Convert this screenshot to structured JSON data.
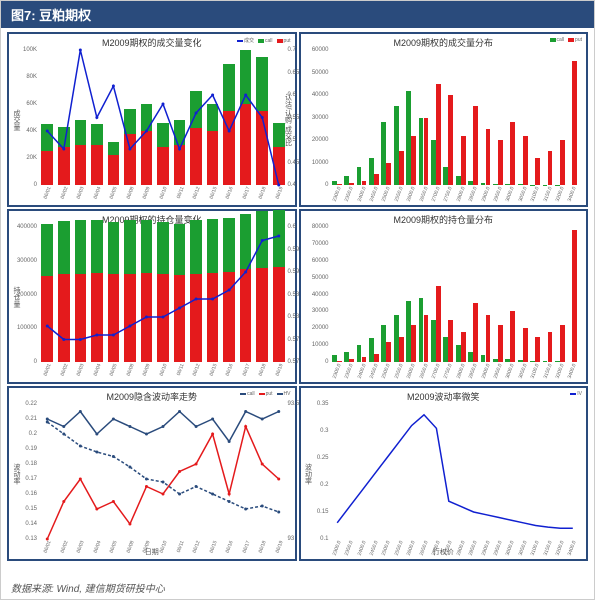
{
  "header_title": "图7: 豆粕期权",
  "footer": "数据来源: Wind, 建信期货研投中心",
  "colors": {
    "border": "#2a4b7c",
    "red": "#e41a1c",
    "green": "#1b9e31",
    "blue": "#1020d0",
    "navy_dotted": "#2a4b7c",
    "black": "#000000"
  },
  "panel1": {
    "title": "M2009期权的成交量变化",
    "type": "stacked-bar+line",
    "y_left": {
      "min": 0,
      "max": 100000,
      "ticks": [
        0,
        "20K",
        "40K",
        "60K",
        "80K",
        "100K"
      ],
      "label": "成交量"
    },
    "y_right": {
      "min": 0.4,
      "max": 0.7,
      "ticks": [
        0.4,
        0.45,
        0.5,
        0.55,
        0.6,
        0.65,
        0.7
      ],
      "label": "认沽/认购 成交比"
    },
    "x": [
      "06/01",
      "06/02",
      "06/03",
      "06/04",
      "06/05",
      "06/08",
      "06/09",
      "06/10",
      "06/11",
      "06/12",
      "06/15",
      "06/16",
      "06/17",
      "06/18",
      "06/19"
    ],
    "red_bars": [
      25000,
      28000,
      30000,
      30000,
      22000,
      38000,
      40000,
      28000,
      30000,
      42000,
      40000,
      55000,
      60000,
      55000,
      28000
    ],
    "green_bars": [
      20000,
      15000,
      18000,
      15000,
      10000,
      18000,
      20000,
      18000,
      18000,
      28000,
      20000,
      35000,
      40000,
      40000,
      18000
    ],
    "line": [
      0.52,
      0.48,
      0.7,
      0.55,
      0.62,
      0.48,
      0.52,
      0.58,
      0.48,
      0.56,
      0.6,
      0.52,
      0.6,
      0.55,
      0.4
    ],
    "legend": [
      "成交",
      "call",
      "put"
    ]
  },
  "panel2": {
    "title": "M2009期权的成交量分布",
    "type": "grouped-bar",
    "y_left": {
      "min": 0,
      "max": 60000,
      "ticks": [
        0,
        10000,
        20000,
        30000,
        40000,
        50000,
        60000
      ]
    },
    "x": [
      "2300.0",
      "2350.0",
      "2400.0",
      "2450.0",
      "2500.0",
      "2550.0",
      "2600.0",
      "2650.0",
      "2700.0",
      "2750.0",
      "2800.0",
      "2850.0",
      "2900.0",
      "2950.0",
      "3000.0",
      "3050.0",
      "3100.0",
      "3150.0",
      "3200.0",
      "3400.0"
    ],
    "green_bars": [
      2000,
      4000,
      8000,
      12000,
      28000,
      35000,
      42000,
      30000,
      20000,
      8000,
      4000,
      2000,
      1000,
      500,
      400,
      300,
      200,
      100,
      100,
      0
    ],
    "red_bars": [
      500,
      1000,
      2000,
      5000,
      10000,
      15000,
      22000,
      30000,
      45000,
      40000,
      22000,
      35000,
      25000,
      20000,
      28000,
      22000,
      12000,
      15000,
      20000,
      55000
    ],
    "legend": [
      "call",
      "put"
    ]
  },
  "panel3": {
    "title": "M2009期权的持仓量变化",
    "type": "stacked-bar+line",
    "y_left": {
      "min": 0,
      "max": 400000,
      "ticks": [
        0,
        100000,
        200000,
        300000,
        400000
      ],
      "label": "持仓量"
    },
    "y_right": {
      "min": 0.57,
      "max": 0.6,
      "ticks": [
        0.57,
        0.575,
        0.58,
        0.585,
        0.59,
        0.595,
        0.6
      ]
    },
    "x": [
      "06/01",
      "06/02",
      "06/03",
      "06/04",
      "06/05",
      "06/08",
      "06/09",
      "06/10",
      "06/11",
      "06/12",
      "06/15",
      "06/16",
      "06/17",
      "06/18",
      "06/19"
    ],
    "red_bars": [
      255000,
      260000,
      262000,
      263000,
      260000,
      262000,
      263000,
      260000,
      258000,
      262000,
      265000,
      268000,
      275000,
      280000,
      282000
    ],
    "green_bars": [
      155000,
      158000,
      158000,
      158000,
      155000,
      158000,
      158000,
      155000,
      152000,
      158000,
      158000,
      160000,
      165000,
      168000,
      168000
    ],
    "line": [
      0.578,
      0.575,
      0.575,
      0.576,
      0.576,
      0.578,
      0.58,
      0.58,
      0.582,
      0.584,
      0.584,
      0.586,
      0.59,
      0.597,
      0.598
    ]
  },
  "panel4": {
    "title": "M2009期权的持仓量分布",
    "type": "grouped-bar",
    "y_left": {
      "min": 0,
      "max": 80000,
      "ticks": [
        0,
        10000,
        20000,
        30000,
        40000,
        50000,
        60000,
        70000,
        80000
      ]
    },
    "x": [
      "2300.0",
      "2350.0",
      "2400.0",
      "2450.0",
      "2500.0",
      "2550.0",
      "2600.0",
      "2650.0",
      "2700.0",
      "2750.0",
      "2800.0",
      "2850.0",
      "2900.0",
      "2950.0",
      "3000.0",
      "3050.0",
      "3100.0",
      "3150.0",
      "3200.0",
      "3400.0"
    ],
    "green_bars": [
      4000,
      6000,
      10000,
      14000,
      22000,
      28000,
      36000,
      38000,
      25000,
      15000,
      10000,
      6000,
      4000,
      2000,
      1500,
      1000,
      800,
      500,
      400,
      0
    ],
    "red_bars": [
      800,
      1500,
      3000,
      5000,
      12000,
      15000,
      22000,
      28000,
      45000,
      25000,
      18000,
      35000,
      28000,
      22000,
      30000,
      20000,
      15000,
      18000,
      22000,
      78000
    ]
  },
  "panel5": {
    "title": "M2009隐含波动率走势",
    "type": "multi-line",
    "y_left": {
      "min": 0.13,
      "max": 0.22,
      "ticks": [
        0.13,
        0.14,
        0.15,
        0.16,
        0.17,
        0.18,
        0.19,
        0.2,
        0.21,
        0.22
      ],
      "label": "波动率"
    },
    "y_right": {
      "min": 93.0,
      "max": 93.5,
      "ticks": [
        93.0,
        93.5
      ]
    },
    "x": [
      "06/01",
      "06/02",
      "06/03",
      "06/04",
      "06/05",
      "06/08",
      "06/09",
      "06/10",
      "06/11",
      "06/12",
      "06/15",
      "06/16",
      "06/17",
      "06/18",
      "06/19"
    ],
    "xlabel": "日期",
    "navy_line": [
      0.21,
      0.205,
      0.215,
      0.2,
      0.21,
      0.205,
      0.2,
      0.205,
      0.215,
      0.205,
      0.21,
      0.195,
      0.215,
      0.21,
      0.215
    ],
    "red_line": [
      0.13,
      0.155,
      0.17,
      0.15,
      0.155,
      0.14,
      0.165,
      0.16,
      0.175,
      0.18,
      0.2,
      0.16,
      0.205,
      0.18,
      0.17
    ],
    "dotted_line": [
      0.208,
      0.2,
      0.192,
      0.188,
      0.185,
      0.178,
      0.17,
      0.168,
      0.16,
      0.165,
      0.16,
      0.155,
      0.15,
      0.152,
      0.148
    ],
    "legend": [
      "call",
      "put",
      "HV"
    ]
  },
  "panel6": {
    "title": "M2009波动率微笑",
    "type": "line",
    "y_left": {
      "min": 0.1,
      "max": 0.35,
      "ticks": [
        0.1,
        0.15,
        0.2,
        0.25,
        0.3,
        0.35
      ],
      "label": "波动率"
    },
    "x": [
      "2300.0",
      "2350.0",
      "2400.0",
      "2450.0",
      "2500.0",
      "2550.0",
      "2600.0",
      "2650.0",
      "2700.0",
      "2750.0",
      "2800.0",
      "2850.0",
      "2900.0",
      "2950.0",
      "3000.0",
      "3050.0",
      "3100.0",
      "3150.0",
      "3200.0",
      "3400.0"
    ],
    "xlabel": "行权价",
    "blue_line": [
      0.13,
      0.16,
      0.19,
      0.22,
      0.25,
      0.28,
      0.31,
      0.33,
      0.305,
      0.17,
      0.16,
      0.15,
      0.145,
      0.14,
      0.135,
      0.13,
      0.125,
      0.122,
      0.12,
      0.12
    ],
    "legend": [
      "IV"
    ]
  }
}
